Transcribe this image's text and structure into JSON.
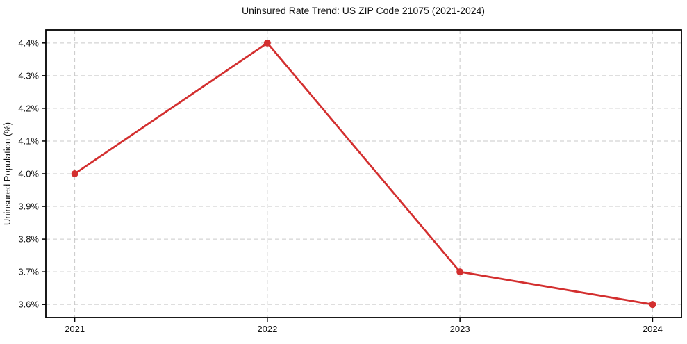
{
  "chart_data": {
    "type": "line",
    "title": "Uninsured Rate Trend: US ZIP Code 21075 (2021-2024)",
    "xlabel": "",
    "ylabel": "Uninsured Population (%)",
    "x": [
      2021,
      2022,
      2023,
      2024
    ],
    "values": [
      4.0,
      4.4,
      3.7,
      3.6
    ],
    "series": [
      {
        "name": "Uninsured Population (%)",
        "values": [
          4.0,
          4.4,
          3.7,
          3.6
        ]
      }
    ],
    "x_tick_labels": [
      "2021",
      "2022",
      "2023",
      "2024"
    ],
    "y_ticks": [
      3.6,
      3.7,
      3.8,
      3.9,
      4.0,
      4.1,
      4.2,
      4.3,
      4.4
    ],
    "y_tick_labels": [
      "3.6%",
      "3.7%",
      "3.8%",
      "3.9%",
      "4.0%",
      "4.1%",
      "4.2%",
      "4.3%",
      "4.4%"
    ],
    "xlim": [
      2020.85,
      2024.15
    ],
    "ylim": [
      3.56,
      4.44
    ],
    "grid": true,
    "grid_style": "dashed",
    "legend": false,
    "legend_position": "none",
    "line_color": "#d32f2f",
    "marker": "circle",
    "marker_size": 5,
    "line_width": 2.8,
    "grid_color": "#c9c9c9",
    "axis_color": "#000000",
    "text_color": "#111111",
    "background_color": "#ffffff"
  }
}
